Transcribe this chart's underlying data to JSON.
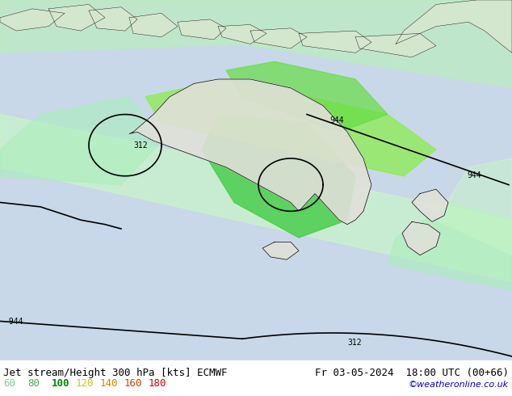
{
  "title_left": "Jet stream/Height 300 hPa [kts] ECMWF",
  "title_right": "Fr 03-05-2024  18:00 UTC (00+66)",
  "credit": "©weatheronline.co.uk",
  "legend_values": [
    60,
    80,
    100,
    120,
    140,
    160,
    180
  ],
  "legend_colors": [
    "#aaffaa",
    "#55dd55",
    "#00bb00",
    "#ffff00",
    "#ffaa00",
    "#ff5500",
    "#ff0000"
  ],
  "bg_color": "#d8e8f0",
  "land_color": "#e8e8e8",
  "title_fontsize": 9,
  "credit_fontsize": 8,
  "legend_fontsize": 9
}
